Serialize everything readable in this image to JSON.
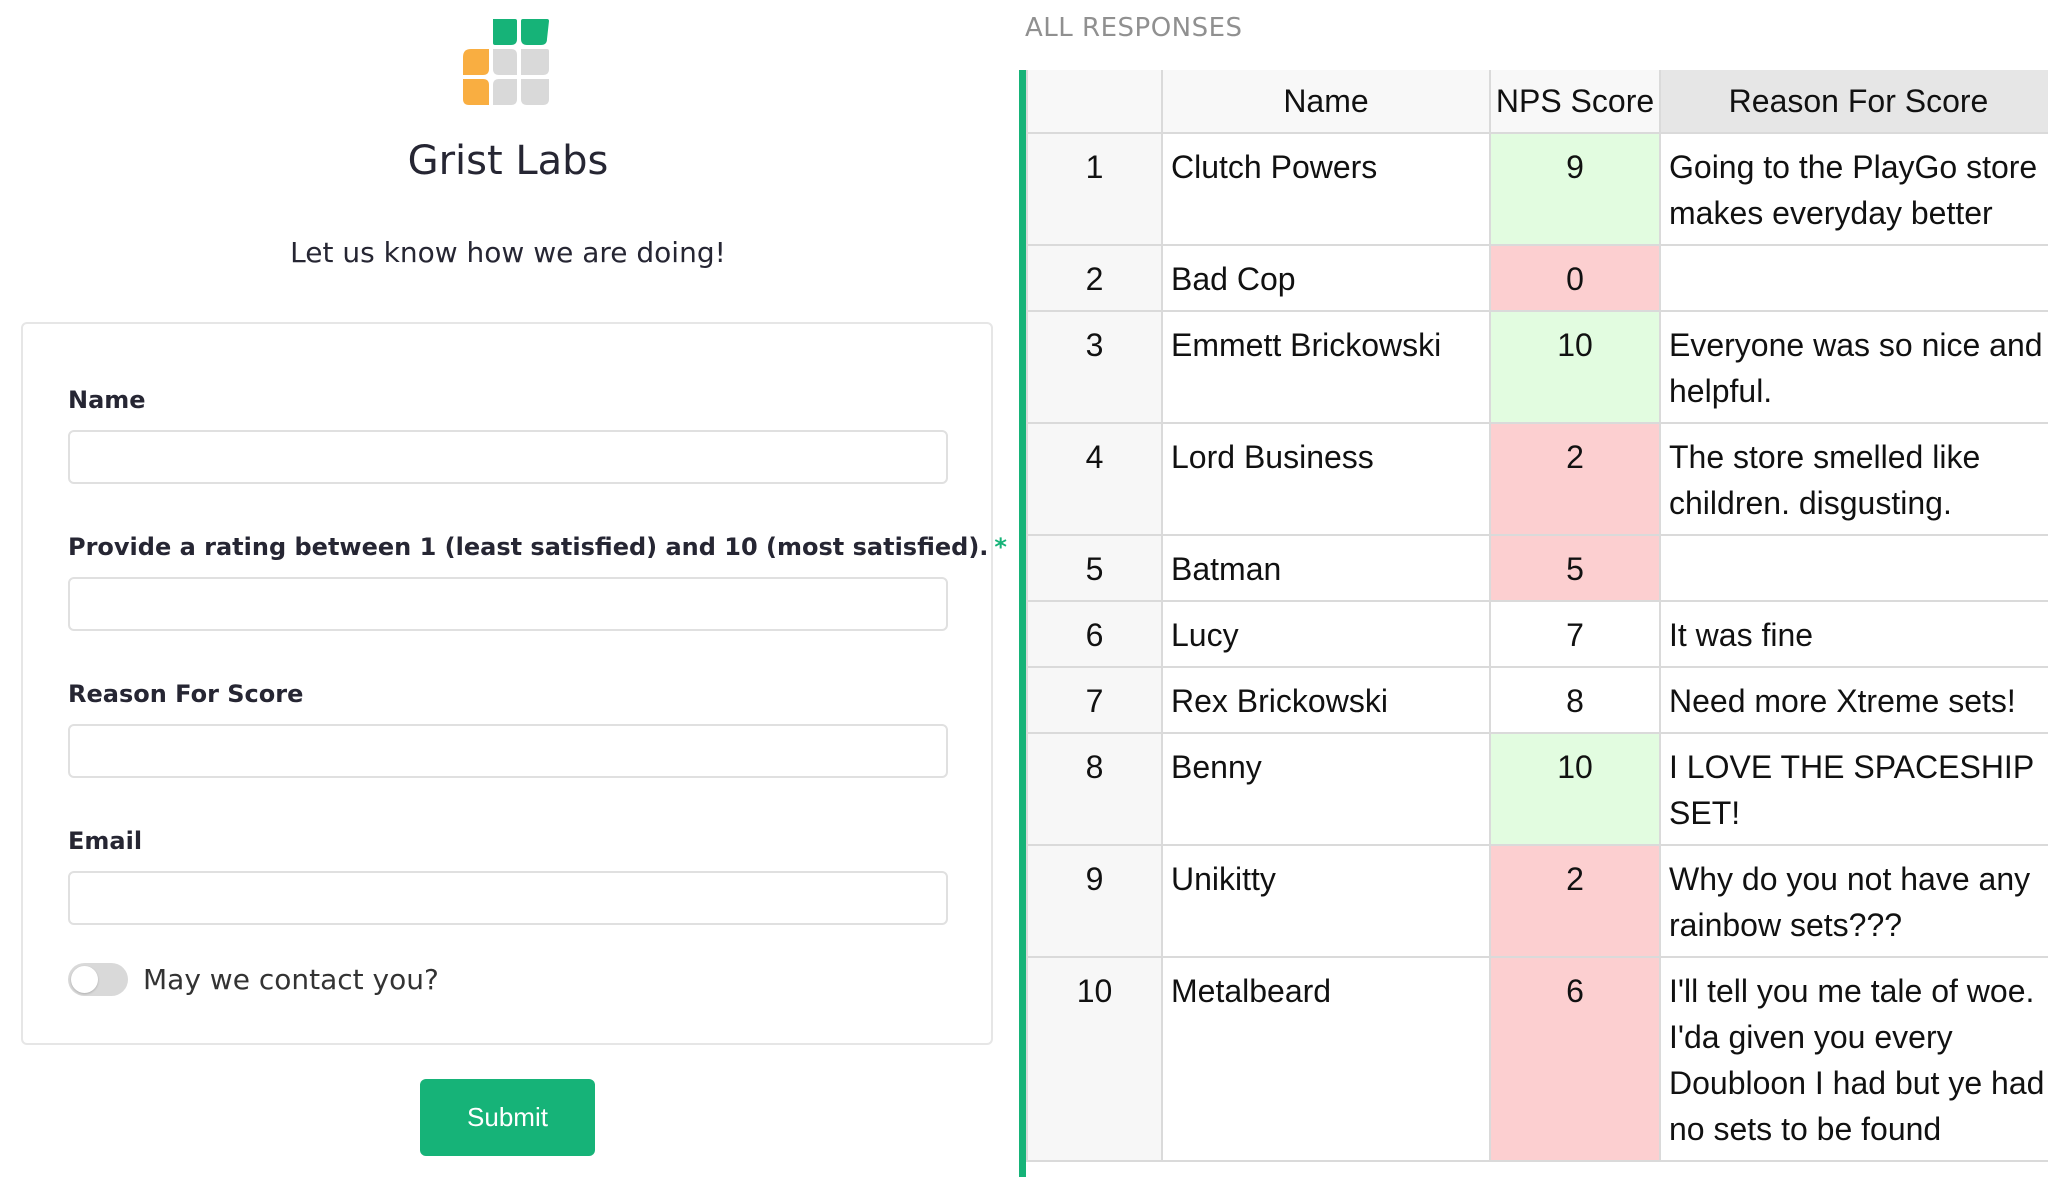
{
  "form": {
    "org_name": "Grist Labs",
    "subtitle": "Let us know how we are doing!",
    "fields": {
      "name": {
        "label": "Name",
        "value": ""
      },
      "rating": {
        "label": "Provide a rating between 1 (least satisfied) and 10 (most satisfied).",
        "required_marker": "*",
        "value": ""
      },
      "reason": {
        "label": "Reason For Score",
        "value": ""
      },
      "email": {
        "label": "Email",
        "value": ""
      }
    },
    "contact_toggle": {
      "label": "May we contact you?",
      "checked": false
    },
    "submit_label": "Submit",
    "colors": {
      "accent": "#16b378",
      "logo_orange": "#f9ae41",
      "logo_grey": "#d9d9d9"
    },
    "logo_icon": "grist-logo-icon"
  },
  "responses": {
    "title": "ALL RESPONSES",
    "columns": [
      "Name",
      "NPS Score",
      "Reason For Score"
    ],
    "rows": [
      {
        "id": "1",
        "name": "Clutch Powers",
        "score": "9",
        "reason": "Going to the PlayGo store makes everyday better",
        "tone": "green"
      },
      {
        "id": "2",
        "name": "Bad Cop",
        "score": "0",
        "reason": "",
        "tone": "red"
      },
      {
        "id": "3",
        "name": "Emmett Brickowski",
        "score": "10",
        "reason": "Everyone was so nice and helpful.",
        "tone": "green"
      },
      {
        "id": "4",
        "name": "Lord Business",
        "score": "2",
        "reason": "The store smelled like children. disgusting.",
        "tone": "red"
      },
      {
        "id": "5",
        "name": "Batman",
        "score": "5",
        "reason": "",
        "tone": "red"
      },
      {
        "id": "6",
        "name": "Lucy",
        "score": "7",
        "reason": "It was fine",
        "tone": "plain"
      },
      {
        "id": "7",
        "name": "Rex Brickowski",
        "score": "8",
        "reason": "Need more Xtreme sets!",
        "tone": "plain"
      },
      {
        "id": "8",
        "name": "Benny",
        "score": "10",
        "reason": "I LOVE THE SPACESHIP SET!",
        "tone": "green"
      },
      {
        "id": "9",
        "name": "Unikitty",
        "score": "2",
        "reason": "Why do you not have any rainbow sets???",
        "tone": "red"
      },
      {
        "id": "10",
        "name": "Metalbeard",
        "score": "6",
        "reason": "I'll tell you me tale of woe. I'da given you every Doubloon I had but ye had no sets to be found",
        "tone": "red"
      }
    ],
    "tone_colors": {
      "green": "#e2fce0",
      "red": "#fccfd0",
      "plain": "#ffffff"
    },
    "selection_color": "#16b378"
  }
}
